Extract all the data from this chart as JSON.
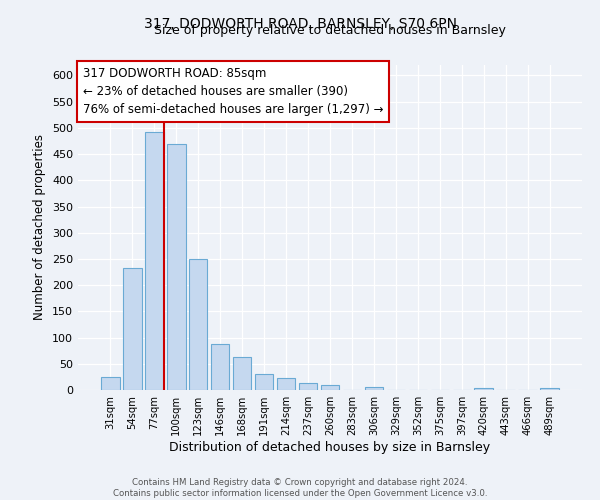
{
  "title": "317, DODWORTH ROAD, BARNSLEY, S70 6PN",
  "subtitle": "Size of property relative to detached houses in Barnsley",
  "xlabel": "Distribution of detached houses by size in Barnsley",
  "ylabel": "Number of detached properties",
  "bar_labels": [
    "31sqm",
    "54sqm",
    "77sqm",
    "100sqm",
    "123sqm",
    "146sqm",
    "168sqm",
    "191sqm",
    "214sqm",
    "237sqm",
    "260sqm",
    "283sqm",
    "306sqm",
    "329sqm",
    "352sqm",
    "375sqm",
    "397sqm",
    "420sqm",
    "443sqm",
    "466sqm",
    "489sqm"
  ],
  "bar_values": [
    25,
    232,
    492,
    470,
    249,
    88,
    63,
    30,
    22,
    13,
    10,
    0,
    5,
    0,
    0,
    0,
    0,
    3,
    0,
    0,
    4
  ],
  "bar_color": "#c5d8ef",
  "bar_edge_color": "#6aaad4",
  "vline_x_index": 2.43,
  "annotation_text": "317 DODWORTH ROAD: 85sqm\n← 23% of detached houses are smaller (390)\n76% of semi-detached houses are larger (1,297) →",
  "annotation_box_color": "#ffffff",
  "annotation_box_edge": "#cc0000",
  "vline_color": "#cc0000",
  "ylim": [
    0,
    620
  ],
  "yticks": [
    0,
    50,
    100,
    150,
    200,
    250,
    300,
    350,
    400,
    450,
    500,
    550,
    600
  ],
  "footer_line1": "Contains HM Land Registry data © Crown copyright and database right 2024.",
  "footer_line2": "Contains public sector information licensed under the Open Government Licence v3.0.",
  "background_color": "#eef2f8",
  "grid_color": "#ffffff"
}
